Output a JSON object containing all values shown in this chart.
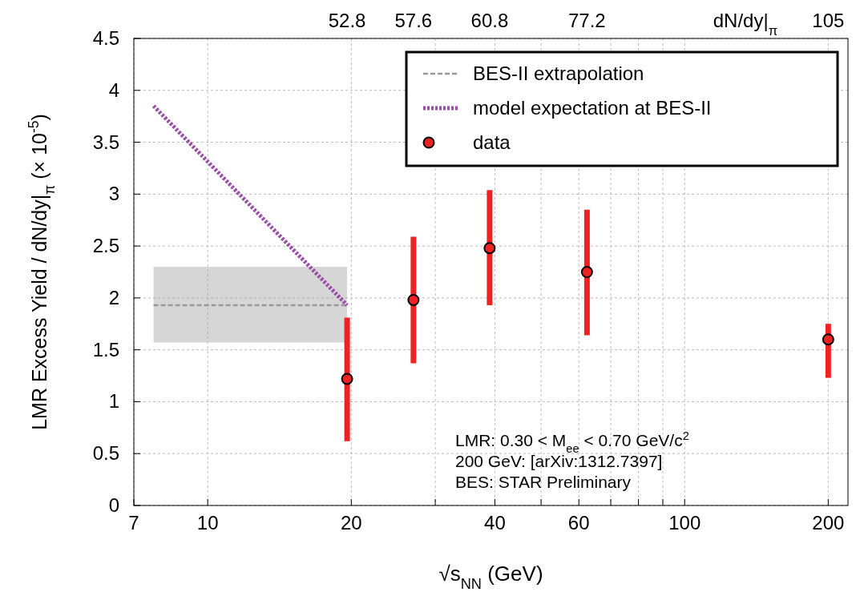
{
  "chart_data": {
    "type": "scatter",
    "xlabel": "√s$_{NN}$ (GeV)",
    "ylabel": "LMR Excess Yield / dN/dy|$_{π}$  (× 10$^{-5}$)",
    "x2label": "dN/dy|$_{π}$",
    "log": "x",
    "xlim": [
      7,
      220
    ],
    "xticks": [
      7,
      10,
      20,
      {
        "value": 30,
        "label": null
      },
      40,
      {
        "value": 50,
        "label": null
      },
      60,
      {
        "value": 70,
        "label": null
      },
      {
        "value": 80,
        "label": null
      },
      {
        "value": 90,
        "label": null
      },
      100,
      200
    ],
    "ylim": [
      0,
      4.5
    ],
    "yticks": [
      0,
      0.5,
      1,
      1.5,
      2,
      2.5,
      3,
      3.5,
      4,
      4.5
    ],
    "grid": true,
    "legend": "top right",
    "series": [
      {
        "name": "BES-II extrapolation",
        "type": "line",
        "color": "#999999",
        "line_style": "dashed",
        "x": [
          7.7,
          19.6
        ],
        "values": [
          1.93,
          1.93
        ],
        "lower": [
          1.57,
          1.57
        ],
        "upper": [
          2.3,
          2.3
        ]
      },
      {
        "name": "model expectation at BES-II",
        "type": "line",
        "color": "#9b4fa8",
        "line_style": "dotted",
        "x": [
          7.7,
          19.6
        ],
        "values": [
          3.85,
          1.93
        ]
      },
      {
        "name": "data",
        "color": "#ee2222",
        "marker": "circle",
        "x": [
          19.6,
          27,
          39,
          62.4,
          200
        ],
        "values": [
          1.22,
          1.98,
          2.48,
          2.25,
          1.6
        ],
        "errors": [
          [
            0.62,
            1.81
          ],
          [
            1.37,
            2.59
          ],
          [
            1.93,
            3.04
          ],
          [
            1.64,
            2.85
          ],
          [
            1.23,
            1.75
          ]
        ]
      }
    ],
    "annotations": [
      "52.8",
      "57.6",
      "60.8",
      "77.2",
      "105",
      "LMR: 0.30 < M$_{ee}$ < 0.70 GeV/c$^{2}$",
      "200 GeV: [arXiv:1312.7397]",
      "BES: STAR Preliminary"
    ]
  }
}
